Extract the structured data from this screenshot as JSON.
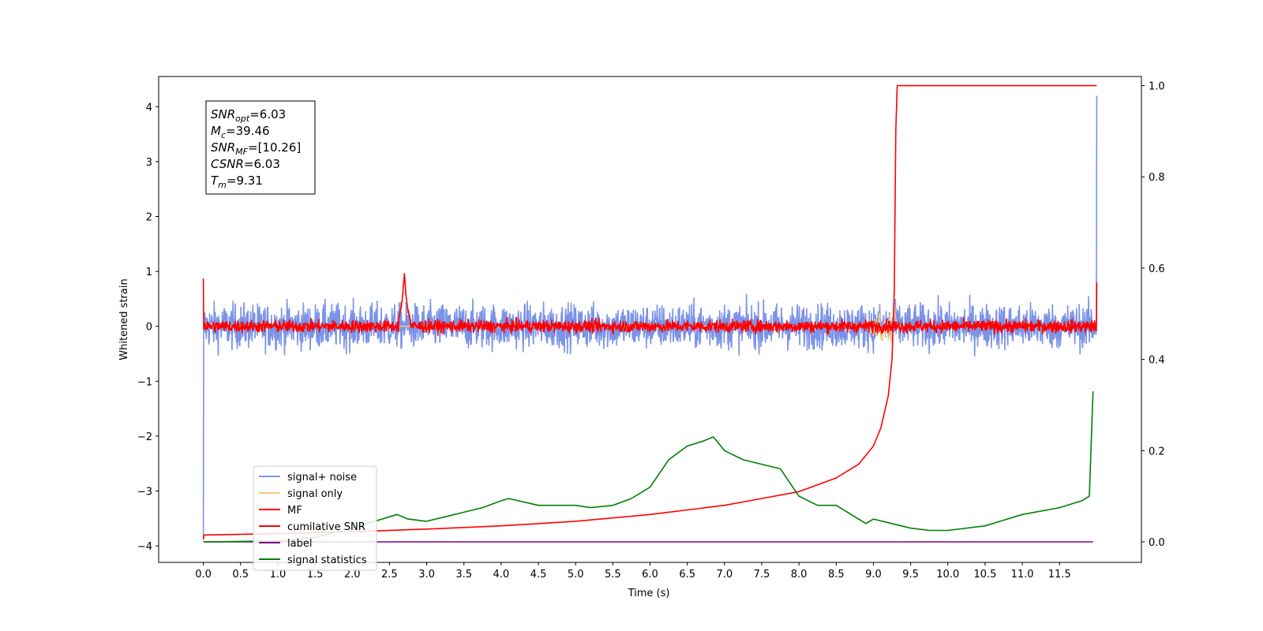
{
  "chart_data": {
    "type": "line",
    "title": "",
    "xlabel": "Time (s)",
    "ylabel": "Whitened strain",
    "y2label": "",
    "xlim": [
      -0.6,
      12.6
    ],
    "ylim": [
      -4.3,
      4.55
    ],
    "y2lim": [
      -0.045,
      1.02
    ],
    "x_ticks": [
      "0.0",
      "0.5",
      "1.0",
      "1.5",
      "2.0",
      "2.5",
      "3.0",
      "3.5",
      "4.0",
      "4.5",
      "5.0",
      "5.5",
      "6.0",
      "6.5",
      "7.0",
      "7.5",
      "8.0",
      "8.5",
      "9.0",
      "9.5",
      "10.0",
      "10.5",
      "11.0",
      "11.5"
    ],
    "y_ticks": [
      "4",
      "3",
      "2",
      "1",
      "0",
      "−1",
      "−2",
      "−3",
      "−4"
    ],
    "y2_ticks": [
      "1.0",
      "0.8",
      "0.6",
      "0.4",
      "0.2",
      "0.0"
    ],
    "grid": false,
    "legend_position": "lower-left",
    "annotation": {
      "position": "top-left",
      "lines": [
        {
          "sym": "SNR",
          "sub": "opt",
          "value": "=6.03"
        },
        {
          "sym": "M",
          "sub": "c",
          "value": "=39.46"
        },
        {
          "sym": "SNR",
          "sub": "MF",
          "value": "=[10.26]"
        },
        {
          "sym": "CSNR",
          "sub": "",
          "value": "=6.03"
        },
        {
          "sym": "T",
          "sub": "m",
          "value": "=9.31"
        }
      ]
    },
    "series": [
      {
        "name": "signal+ noise",
        "color": "#7b93e8",
        "axis": "left",
        "style": "noise",
        "x_range": [
          0,
          12
        ],
        "amplitude": 1.1,
        "start_value": -3.85,
        "end_value": 4.2
      },
      {
        "name": "signal only",
        "color": "#f5c77e",
        "axis": "left",
        "style": "chirp",
        "x_range": [
          0,
          12
        ],
        "peak_time": 9.31,
        "peak_value": 0.45
      },
      {
        "name": "MF",
        "color": "#ff0000",
        "axis": "left",
        "style": "noise",
        "x_range": [
          0,
          12
        ],
        "amplitude": 0.3,
        "start_value": 0.87,
        "end_value": 0.8,
        "bump_time": 2.7,
        "bump_value": 1.0
      },
      {
        "name": "cumilative SNR",
        "color": "#ff0000",
        "axis": "right",
        "x": [
          0,
          0.01,
          1,
          2,
          3,
          4,
          5,
          6,
          7,
          7.5,
          8,
          8.5,
          8.8,
          9,
          9.1,
          9.2,
          9.25,
          9.28,
          9.3,
          9.32,
          9.35,
          9.4,
          10,
          11,
          12
        ],
        "values": [
          0.005,
          0.015,
          0.018,
          0.022,
          0.028,
          0.035,
          0.045,
          0.06,
          0.08,
          0.095,
          0.11,
          0.14,
          0.17,
          0.21,
          0.25,
          0.32,
          0.4,
          0.55,
          0.9,
          1.0,
          1.0,
          1.0,
          1.0,
          1.0,
          1.0
        ]
      },
      {
        "name": "label",
        "color": "#800080",
        "axis": "right",
        "x": [
          0,
          11.95
        ],
        "values": [
          0.0,
          0.0
        ]
      },
      {
        "name": "signal statistics",
        "color": "#008000",
        "axis": "right",
        "x": [
          0,
          0.5,
          1,
          1.5,
          2,
          2.5,
          2.6,
          2.75,
          3,
          3.25,
          3.5,
          3.75,
          4,
          4.1,
          4.5,
          5,
          5.2,
          5.5,
          5.75,
          6,
          6.25,
          6.5,
          6.7,
          6.85,
          7,
          7.25,
          7.5,
          7.75,
          8,
          8.25,
          8.5,
          8.7,
          8.9,
          9,
          9.25,
          9.5,
          9.75,
          10,
          10.5,
          11,
          11.5,
          11.8,
          11.9,
          11.95
        ],
        "values": [
          0.0,
          0.001,
          0.002,
          0.01,
          0.03,
          0.055,
          0.06,
          0.05,
          0.045,
          0.055,
          0.065,
          0.075,
          0.09,
          0.095,
          0.08,
          0.08,
          0.075,
          0.08,
          0.095,
          0.12,
          0.18,
          0.21,
          0.22,
          0.23,
          0.2,
          0.18,
          0.17,
          0.16,
          0.1,
          0.08,
          0.08,
          0.06,
          0.04,
          0.05,
          0.04,
          0.03,
          0.025,
          0.025,
          0.035,
          0.06,
          0.075,
          0.09,
          0.1,
          0.33
        ]
      }
    ]
  }
}
